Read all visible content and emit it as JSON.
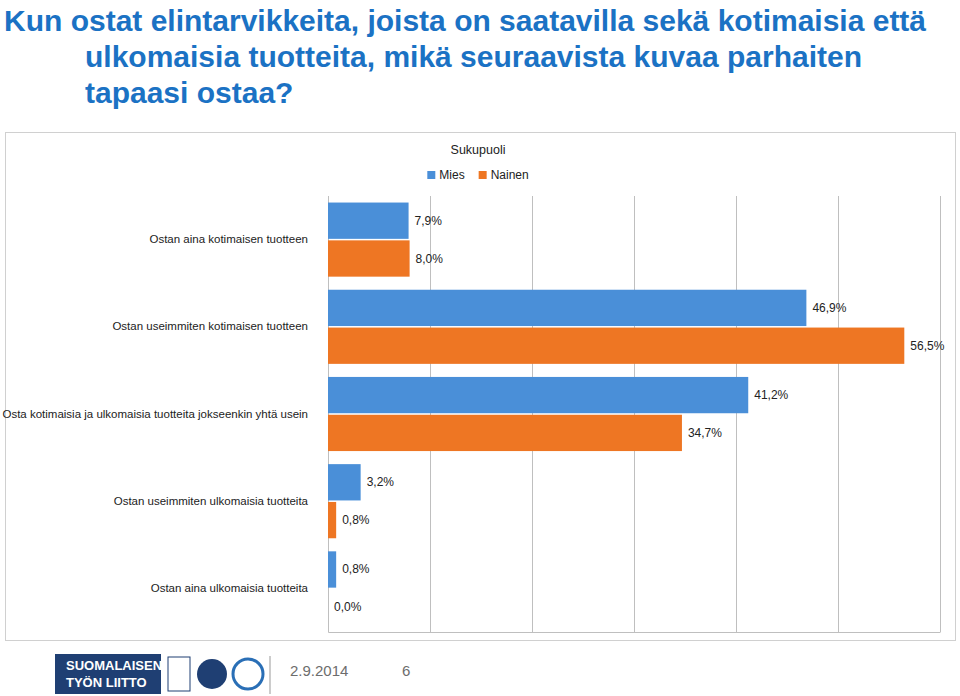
{
  "chart_data": {
    "type": "bar",
    "title": "Kun ostat elintarvikkeita, joista on saatavilla sekä kotimaisia että ulkomaisia tuotteita, mikä seuraavista kuvaa parhaiten tapaasi ostaa?",
    "legend_title": "Sukupuoli",
    "categories": [
      "Ostan aina kotimaisen tuotteen",
      "Ostan useimmiten kotimaisen tuotteen",
      "Osta kotimaisia ja ulkomaisia tuotteita jokseenkin yhtä usein",
      "Ostan useimmiten ulkomaisia tuotteita",
      "Ostan aina ulkomaisia tuotteita"
    ],
    "series": [
      {
        "name": "Mies",
        "color": "#4a8fd8",
        "values": [
          7.9,
          46.9,
          41.2,
          3.2,
          0.8
        ],
        "value_labels": [
          "7,9%",
          "46,9%",
          "41,2%",
          "3,2%",
          "0,8%"
        ]
      },
      {
        "name": "Nainen",
        "color": "#ee7623",
        "values": [
          8.0,
          56.5,
          34.7,
          0.8,
          0.0
        ],
        "value_labels": [
          "8,0%",
          "56,5%",
          "34,7%",
          "0,8%",
          "0,0%"
        ]
      }
    ],
    "orientation": "horizontal",
    "xlim": [
      0,
      60
    ],
    "xticks": [
      0,
      10,
      20,
      30,
      40,
      50,
      60
    ],
    "tick_labels": "y",
    "grid": true,
    "legend": "top",
    "data_labels": true
  },
  "footer": {
    "organization": [
      "SUOMALAISEN",
      "TYÖN LIITTO"
    ],
    "date": "2.9.2014",
    "page": "6"
  }
}
